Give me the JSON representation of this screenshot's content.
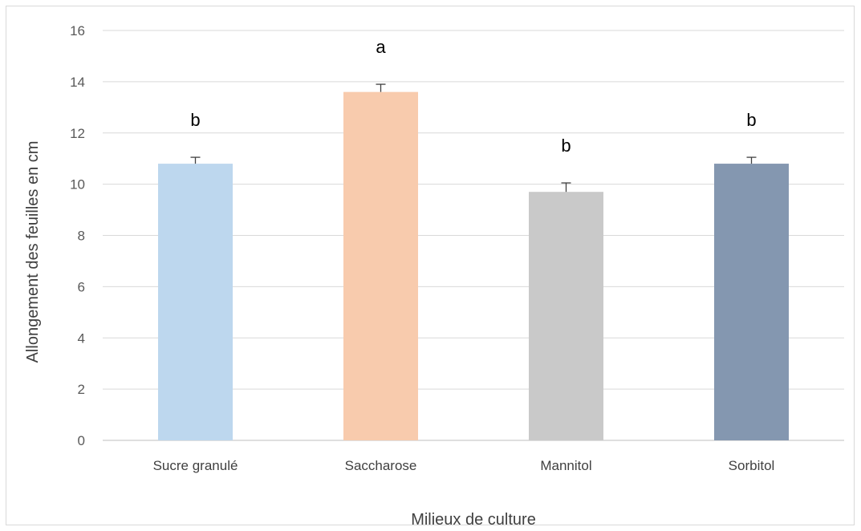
{
  "chart_data": {
    "type": "bar",
    "title": "",
    "xlabel": "Milieux de culture",
    "ylabel": "Allongement des feuilles en cm",
    "ylim": [
      0,
      16
    ],
    "yticks": [
      0,
      2,
      4,
      6,
      8,
      10,
      12,
      14,
      16
    ],
    "grid": true,
    "legend": "none",
    "categories": [
      "Sucre granulé",
      "Saccharose",
      "Mannitol",
      "Sorbitol"
    ],
    "values": [
      10.8,
      13.6,
      9.7,
      10.8
    ],
    "errors": [
      0.25,
      0.3,
      0.35,
      0.25
    ],
    "significance_labels": [
      "b",
      "a",
      "b",
      "b"
    ],
    "colors": [
      "#bdd7ee",
      "#f8cbad",
      "#c9c9c9",
      "#8497b0"
    ]
  }
}
